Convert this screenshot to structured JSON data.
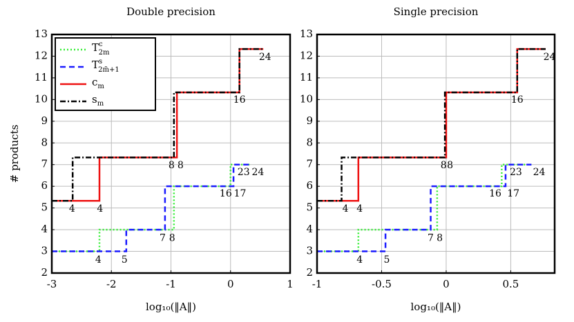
{
  "chart_data": [
    {
      "type": "step",
      "title": "Double precision",
      "xlabel": "log₁₀(‖A‖)",
      "ylabel": "# products",
      "xlim": [
        -3,
        1
      ],
      "ylim": [
        2,
        13
      ],
      "xticks": [
        -3,
        -2,
        -1,
        0,
        1
      ],
      "yticks": [
        2,
        3,
        4,
        5,
        6,
        7,
        8,
        9,
        10,
        11,
        12,
        13
      ],
      "grid": true,
      "legend": "upper left",
      "series": [
        {
          "name": "T",
          "name_sup": "c",
          "name_sub": "2m",
          "color": "#33ee33",
          "style": "dotted",
          "x": [
            -3,
            -2.2,
            -0.95,
            0,
            0.35
          ],
          "values": [
            3,
            4,
            6,
            7,
            7
          ]
        },
        {
          "name": "T",
          "name_sup": "s",
          "name_sub": "2m̃+1",
          "color": "#1a1aff",
          "style": "dashed",
          "x": [
            -3,
            -1.75,
            -1.1,
            0.05,
            0.32
          ],
          "values": [
            3,
            4,
            6,
            7,
            7
          ]
        },
        {
          "name": "c",
          "name_sub": "m",
          "color": "#ee1111",
          "style": "solid",
          "x": [
            -3,
            -2.2,
            -0.9,
            0.15,
            0.55
          ],
          "values": [
            5.33,
            7.33,
            10.33,
            12.33,
            12.33
          ]
        },
        {
          "name": "s",
          "name_sub": "m",
          "color": "#000000",
          "style": "dashdot",
          "x": [
            -3,
            -2.65,
            -0.95,
            0.15,
            0.55
          ],
          "values": [
            5.33,
            7.33,
            10.33,
            12.33,
            12.33
          ]
        }
      ],
      "annotations": [
        {
          "text": "4",
          "x": -2.66,
          "y": 4.96,
          "color": "#000000"
        },
        {
          "text": "4",
          "x": -2.19,
          "y": 4.96,
          "color": "#ee1111"
        },
        {
          "text": "4",
          "x": -2.22,
          "y": 2.6,
          "color": "#33ee33"
        },
        {
          "text": "5",
          "x": -1.78,
          "y": 2.6,
          "color": "#1a1aff"
        },
        {
          "text": "7",
          "x": -1.14,
          "y": 3.6,
          "color": "#1a1aff"
        },
        {
          "text": "8",
          "x": -0.98,
          "y": 3.6,
          "color": "#33ee33"
        },
        {
          "text": "8",
          "x": -0.99,
          "y": 6.96,
          "color": "#000000"
        },
        {
          "text": "8",
          "x": -0.84,
          "y": 6.96,
          "color": "#ee1111"
        },
        {
          "text": "16",
          "x": -0.08,
          "y": 5.66,
          "color": "#33ee33"
        },
        {
          "text": "17",
          "x": 0.16,
          "y": 5.66,
          "color": "#1a1aff"
        },
        {
          "text": "23",
          "x": 0.22,
          "y": 6.64,
          "color": "#1a1aff"
        },
        {
          "text": "24",
          "x": 0.46,
          "y": 6.64,
          "color": "#33ee33"
        },
        {
          "text": "16",
          "x": 0.15,
          "y": 9.98,
          "color": "#000000"
        },
        {
          "text": "24",
          "x": 0.58,
          "y": 11.95,
          "color": "#000000"
        }
      ]
    },
    {
      "type": "step",
      "title": "Single precision",
      "xlabel": "log₁₀(‖A‖)",
      "xlim": [
        -1,
        0.84
      ],
      "ylim": [
        2,
        13
      ],
      "xticks": [
        -1,
        -0.5,
        0,
        0.5
      ],
      "yticks": [
        2,
        3,
        4,
        5,
        6,
        7,
        8,
        9,
        10,
        11,
        12,
        13
      ],
      "grid": true,
      "series": [
        {
          "color": "#33ee33",
          "style": "dotted",
          "x": [
            -1,
            -0.68,
            -0.07,
            0.43,
            0.66
          ],
          "values": [
            3,
            4,
            6,
            7,
            7
          ]
        },
        {
          "color": "#1a1aff",
          "style": "dashed",
          "x": [
            -1,
            -0.47,
            -0.12,
            0.46,
            0.66
          ],
          "values": [
            3,
            4,
            6,
            7,
            7
          ]
        },
        {
          "color": "#ee1111",
          "style": "solid",
          "x": [
            -1,
            -0.68,
            0,
            0.55,
            0.77
          ],
          "values": [
            5.33,
            7.33,
            10.33,
            12.33,
            12.33
          ]
        },
        {
          "color": "#000000",
          "style": "dashdot",
          "x": [
            -1,
            -0.81,
            -0.01,
            0.55,
            0.77
          ],
          "values": [
            5.33,
            7.33,
            10.33,
            12.33,
            12.33
          ]
        }
      ],
      "annotations": [
        {
          "text": "4",
          "x": -0.78,
          "y": 4.96,
          "color": "#000000"
        },
        {
          "text": "4",
          "x": -0.67,
          "y": 4.96,
          "color": "#ee1111"
        },
        {
          "text": "4",
          "x": -0.67,
          "y": 2.6,
          "color": "#33ee33"
        },
        {
          "text": "5",
          "x": -0.46,
          "y": 2.6,
          "color": "#1a1aff"
        },
        {
          "text": "7",
          "x": -0.12,
          "y": 3.6,
          "color": "#1a1aff"
        },
        {
          "text": "8",
          "x": -0.05,
          "y": 3.6,
          "color": "#33ee33"
        },
        {
          "text": "8",
          "x": -0.02,
          "y": 6.96,
          "color": "#000000"
        },
        {
          "text": "8",
          "x": 0.03,
          "y": 6.96,
          "color": "#ee1111"
        },
        {
          "text": "16",
          "x": 0.38,
          "y": 5.66,
          "color": "#33ee33"
        },
        {
          "text": "17",
          "x": 0.52,
          "y": 5.66,
          "color": "#1a1aff"
        },
        {
          "text": "23",
          "x": 0.54,
          "y": 6.64,
          "color": "#1a1aff"
        },
        {
          "text": "24",
          "x": 0.72,
          "y": 6.64,
          "color": "#33ee33"
        },
        {
          "text": "16",
          "x": 0.55,
          "y": 9.98,
          "color": "#000000"
        },
        {
          "text": "24",
          "x": 0.8,
          "y": 11.95,
          "color": "#000000"
        }
      ]
    }
  ]
}
